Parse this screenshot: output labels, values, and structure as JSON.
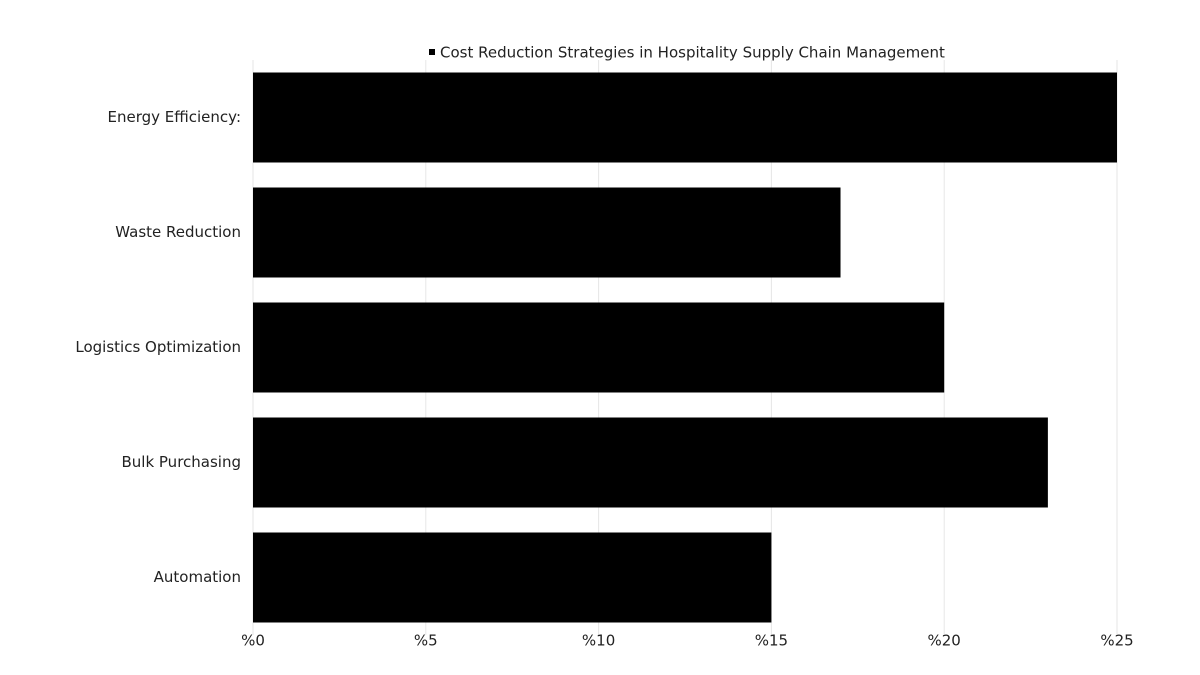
{
  "chart_data": {
    "type": "bar",
    "orientation": "horizontal",
    "categories": [
      "Energy Efficiency:",
      "Waste Reduction",
      "Logistics Optimization",
      "Bulk Purchasing",
      "Automation"
    ],
    "series": [
      {
        "name": "Cost Reduction Strategies in Hospitality Supply Chain Management",
        "color": "#000000",
        "values": [
          25,
          17,
          20,
          23,
          15
        ]
      }
    ],
    "xlim": [
      0,
      25
    ],
    "xticks": [
      {
        "value": 0,
        "label": "%0"
      },
      {
        "value": 5,
        "label": "%5"
      },
      {
        "value": 10,
        "label": "%10"
      },
      {
        "value": 15,
        "label": "%15"
      },
      {
        "value": 20,
        "label": "%20"
      },
      {
        "value": 25,
        "label": "%25"
      }
    ],
    "grid": true,
    "legend": "top"
  }
}
